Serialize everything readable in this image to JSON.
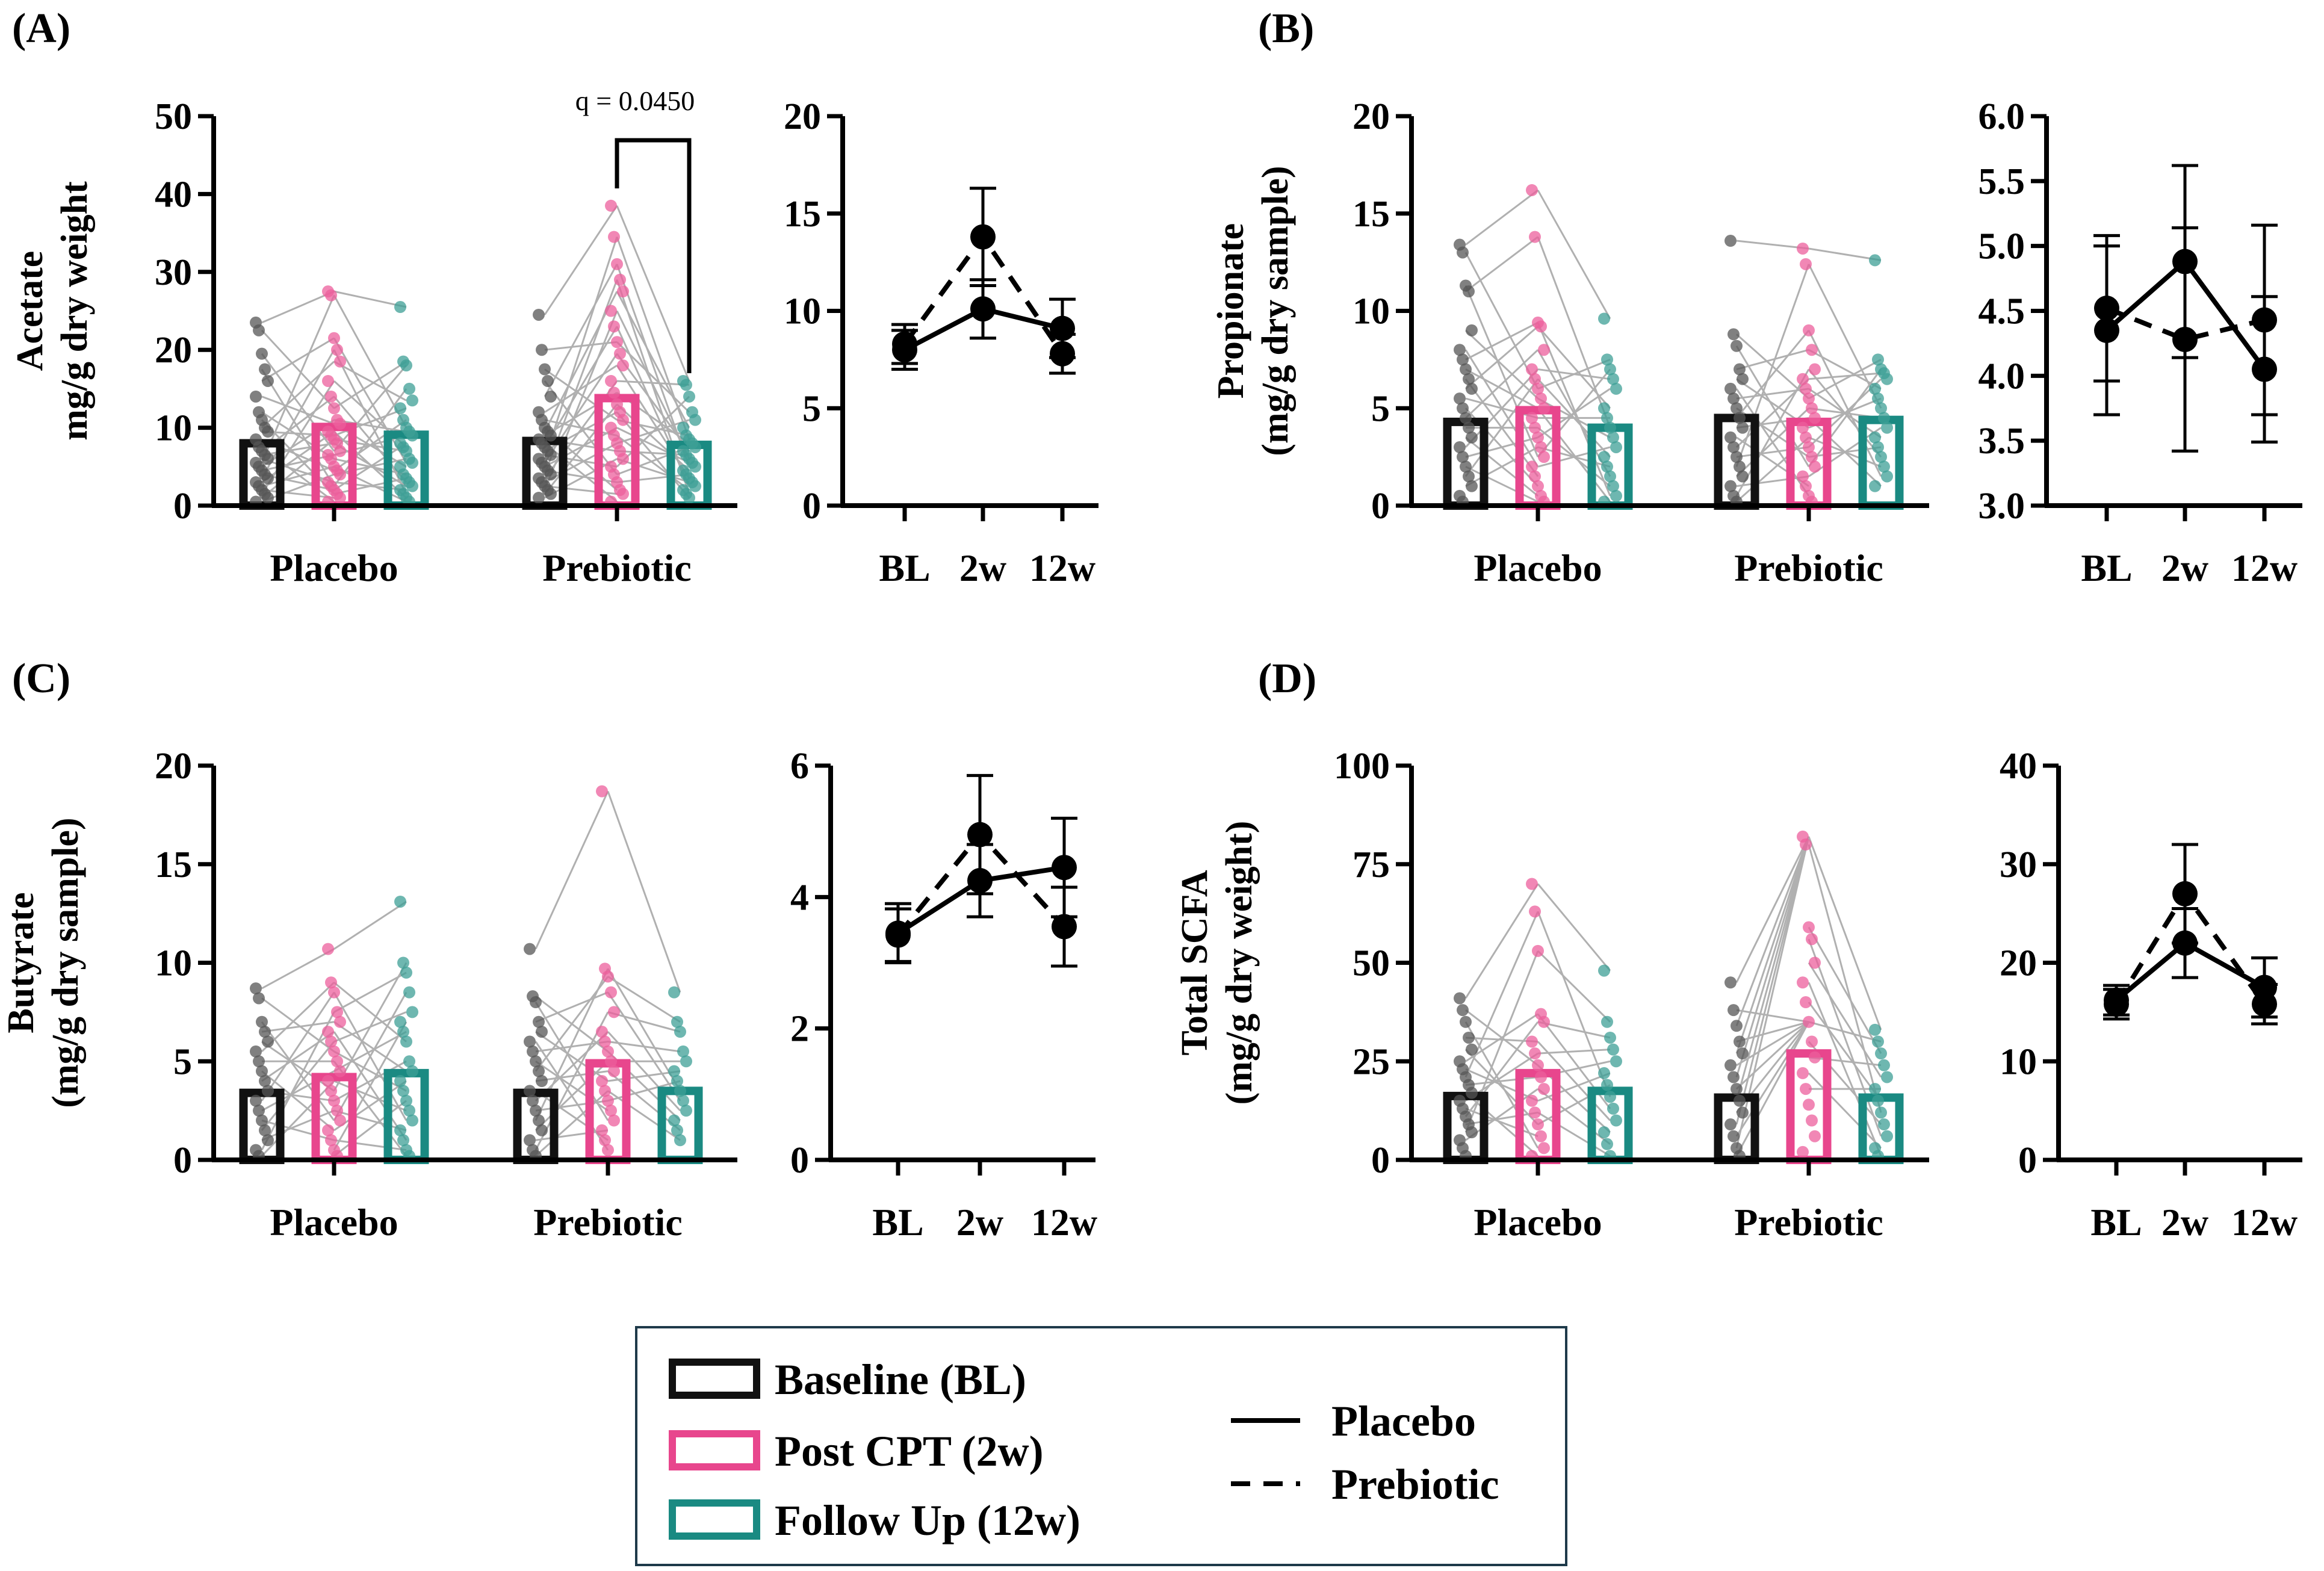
{
  "colors": {
    "baseline": "#111111",
    "post": "#e8468d",
    "follow": "#1a8a82",
    "dot_baseline": "#555555",
    "dot_post": "#ec5f9c",
    "dot_follow": "#3e9f96",
    "pair_line": "#b0b0b0",
    "legend_border": "#1e3a4a"
  },
  "time_labels": [
    "BL",
    "2w",
    "12w"
  ],
  "group_labels": [
    "Placebo",
    "Prebiotic"
  ],
  "legend": {
    "bars": [
      {
        "label": "Baseline (BL)",
        "color": "#111111"
      },
      {
        "label": "Post CPT (2w)",
        "color": "#e8468d"
      },
      {
        "label": "Follow Up (12w)",
        "color": "#1a8a82"
      }
    ],
    "lines": [
      {
        "label": "Placebo",
        "style": "solid"
      },
      {
        "label": "Prebiotic",
        "style": "dashed"
      }
    ]
  },
  "chart_data": [
    {
      "panel": "(A)",
      "type": "bar",
      "ylabel_lines": [
        "Acetate",
        "mg/g dry weight"
      ],
      "ylim": [
        0,
        50
      ],
      "yticks": [
        0,
        10,
        20,
        30,
        40,
        50
      ],
      "categories": [
        "Placebo",
        "Prebiotic"
      ],
      "series": [
        {
          "name": "Baseline (BL)",
          "values": [
            8.0,
            8.3
          ]
        },
        {
          "name": "Post CPT (2w)",
          "values": [
            10.1,
            13.8
          ]
        },
        {
          "name": "Follow Up (12w)",
          "values": [
            9.1,
            7.8
          ]
        }
      ],
      "annotation": {
        "text": "q = 0.0450",
        "group": "Prebiotic",
        "from": "Post CPT (2w)",
        "to": "Follow Up (12w)"
      },
      "points": [
        [
          [
            23.5,
            22.5,
            19.5,
            17.5,
            16,
            14,
            12,
            11,
            10,
            9.5,
            8.5,
            7.5,
            7,
            6.5,
            6,
            5.5,
            5,
            4.5,
            4,
            3.5,
            3,
            2.5,
            2,
            1.5,
            1,
            0.5
          ],
          [
            27.5,
            27,
            21.5,
            20,
            18.5,
            16,
            14,
            12.5,
            11,
            10.5,
            9.5,
            9,
            8.5,
            8,
            7,
            6.5,
            6,
            5,
            4.5,
            4,
            3,
            2.5,
            2,
            1.5,
            1,
            0.5
          ],
          [
            25.5,
            18.5,
            18,
            15,
            13.5,
            12.5,
            11,
            10,
            9.5,
            9,
            8,
            7.5,
            7,
            6,
            5.5,
            5,
            4,
            3.5,
            3,
            2.5,
            2,
            1.5,
            1,
            0.5
          ]
        ],
        [
          [
            24.5,
            20,
            17.5,
            16,
            14,
            12,
            11,
            10,
            9.5,
            9,
            8.5,
            8,
            7.5,
            7,
            6.5,
            6,
            5.5,
            5,
            4.5,
            4,
            3.5,
            3,
            2.5,
            2,
            1.5,
            1
          ],
          [
            38.5,
            34.5,
            31,
            29,
            27.5,
            25,
            23,
            21,
            19.5,
            18,
            16,
            14.5,
            13,
            12,
            11,
            10,
            9,
            8,
            7,
            6,
            5,
            4,
            3,
            2,
            1.5,
            0.5
          ],
          [
            16,
            15.5,
            14,
            12,
            11,
            10,
            9,
            8.5,
            8,
            7.5,
            7,
            6.5,
            6,
            5.5,
            5,
            4.5,
            4,
            3.5,
            3,
            2.5,
            2,
            1.5,
            1
          ]
        ]
      ]
    },
    {
      "panel": "(A)",
      "type": "line",
      "categories": [
        "BL",
        "2w",
        "12w"
      ],
      "ylim": [
        0,
        20
      ],
      "yticks": [
        0,
        5,
        10,
        15,
        20
      ],
      "series": [
        {
          "name": "Placebo",
          "values": [
            8.0,
            10.1,
            9.1
          ],
          "err": [
            1.0,
            1.5,
            1.5
          ]
        },
        {
          "name": "Prebiotic",
          "values": [
            8.3,
            13.8,
            7.8
          ],
          "err": [
            1.0,
            2.5,
            1.0
          ]
        }
      ]
    },
    {
      "panel": "(B)",
      "type": "bar",
      "ylabel_lines": [
        "Propionate",
        "(mg/g dry sample)"
      ],
      "ylim": [
        0,
        20
      ],
      "yticks": [
        0,
        5,
        10,
        15,
        20
      ],
      "categories": [
        "Placebo",
        "Prebiotic"
      ],
      "series": [
        {
          "name": "Baseline (BL)",
          "values": [
            4.3,
            4.5
          ]
        },
        {
          "name": "Post CPT (2w)",
          "values": [
            4.9,
            4.3
          ]
        },
        {
          "name": "Follow Up (12w)",
          "values": [
            4.0,
            4.4
          ]
        }
      ],
      "points": [
        [
          [
            13.4,
            13,
            11.3,
            11,
            9,
            8,
            7.5,
            7,
            6.5,
            6,
            5.5,
            5,
            4.5,
            4,
            3.5,
            3,
            2.5,
            2,
            1.5,
            1,
            0.5,
            0.2
          ],
          [
            16.2,
            13.8,
            9.4,
            9.2,
            8,
            7,
            6.5,
            6,
            5.5,
            5,
            4.5,
            4,
            3.5,
            3,
            2.5,
            2,
            1.5,
            1,
            0.5,
            0.2
          ],
          [
            9.6,
            7.5,
            7,
            6.5,
            6,
            5,
            4.5,
            4,
            3.5,
            3,
            2.5,
            2,
            1.5,
            1,
            0.5,
            0.2
          ]
        ],
        [
          [
            13.6,
            8.8,
            8.2,
            7,
            6.5,
            6,
            5.5,
            5,
            4.5,
            4,
            3.5,
            3,
            2.5,
            2,
            1.5,
            1,
            0.5,
            0.2
          ],
          [
            13.2,
            12.4,
            9,
            8,
            7,
            6.5,
            6,
            5.5,
            5,
            4.5,
            4,
            3.5,
            3,
            2.5,
            2,
            1.5,
            1,
            0.5,
            0.2
          ],
          [
            12.6,
            7.5,
            7,
            6.8,
            6.5,
            6,
            5.5,
            5,
            4.5,
            4,
            3.5,
            3,
            2.5,
            2,
            1.5,
            1
          ]
        ]
      ]
    },
    {
      "panel": "(B)",
      "type": "line",
      "categories": [
        "BL",
        "2w",
        "12w"
      ],
      "ylim": [
        3.0,
        6.0
      ],
      "yticks": [
        3.0,
        3.5,
        4.0,
        4.5,
        5.0,
        5.5,
        6.0
      ],
      "series": [
        {
          "name": "Placebo",
          "values": [
            4.35,
            4.88,
            4.05
          ],
          "err": [
            0.65,
            0.74,
            0.56
          ]
        },
        {
          "name": "Prebiotic",
          "values": [
            4.52,
            4.28,
            4.43
          ],
          "err": [
            0.56,
            0.86,
            0.73
          ]
        }
      ]
    },
    {
      "panel": "(C)",
      "type": "bar",
      "ylabel_lines": [
        "Butyrate",
        "(mg/g dry sample)"
      ],
      "ylim": [
        0,
        20
      ],
      "yticks": [
        0,
        5,
        10,
        15,
        20
      ],
      "categories": [
        "Placebo",
        "Prebiotic"
      ],
      "series": [
        {
          "name": "Baseline (BL)",
          "values": [
            3.4,
            3.4
          ]
        },
        {
          "name": "Post CPT (2w)",
          "values": [
            4.2,
            4.9
          ]
        },
        {
          "name": "Follow Up (12w)",
          "values": [
            4.4,
            3.5
          ]
        }
      ],
      "points": [
        [
          [
            8.7,
            8.2,
            7,
            6.5,
            6,
            5.5,
            5,
            4.5,
            4,
            3.5,
            3,
            2.5,
            2,
            1.5,
            1,
            0.5,
            0.2
          ],
          [
            10.7,
            9,
            8.5,
            7.5,
            7,
            6.5,
            6,
            5.5,
            5,
            4.5,
            4,
            3.5,
            3,
            2.5,
            2,
            1.5,
            1,
            0.5,
            0.2
          ],
          [
            13.1,
            10,
            9.5,
            8.5,
            7.5,
            7,
            6.5,
            6,
            5,
            4.5,
            4,
            3.5,
            3,
            2.5,
            2,
            1.5,
            1,
            0.5,
            0.2
          ]
        ],
        [
          [
            10.7,
            8.3,
            8,
            7,
            6.5,
            6,
            5.5,
            5,
            4.5,
            4,
            3.5,
            3,
            2.5,
            2,
            1.5,
            1,
            0.5,
            0.2
          ],
          [
            18.7,
            9.7,
            9.3,
            8.5,
            7.5,
            6.5,
            6,
            5.5,
            5,
            4.5,
            4,
            3.5,
            3,
            2.5,
            2,
            1.5,
            1,
            0.5
          ],
          [
            8.5,
            7,
            6.5,
            5.5,
            5,
            4.5,
            4,
            3.5,
            3,
            2.5,
            2,
            1.5,
            1
          ]
        ]
      ]
    },
    {
      "panel": "(C)",
      "type": "line",
      "categories": [
        "BL",
        "2w",
        "12w"
      ],
      "ylim": [
        0,
        6
      ],
      "yticks": [
        0,
        2,
        4,
        6
      ],
      "series": [
        {
          "name": "Placebo",
          "values": [
            3.45,
            4.25,
            4.45
          ],
          "err": [
            0.45,
            0.55,
            0.75
          ]
        },
        {
          "name": "Prebiotic",
          "values": [
            3.42,
            4.95,
            3.55
          ],
          "err": [
            0.4,
            0.9,
            0.6
          ]
        }
      ]
    },
    {
      "panel": "(D)",
      "type": "bar",
      "ylabel_lines": [
        "Total SCFA",
        "(mg/g dry weight)"
      ],
      "ylim": [
        0,
        100
      ],
      "yticks": [
        0,
        25,
        50,
        75,
        100
      ],
      "categories": [
        "Placebo",
        "Prebiotic"
      ],
      "series": [
        {
          "name": "Baseline (BL)",
          "values": [
            16.2,
            15.8
          ]
        },
        {
          "name": "Post CPT (2w)",
          "values": [
            22.0,
            27.0
          ]
        },
        {
          "name": "Follow Up (12w)",
          "values": [
            17.5,
            15.8
          ]
        }
      ],
      "points": [
        [
          [
            41,
            38,
            35,
            31,
            28,
            25,
            23,
            21,
            19,
            17,
            15,
            13,
            11,
            9,
            7,
            5,
            3,
            1
          ],
          [
            70,
            63,
            53,
            37,
            35,
            30,
            27,
            24,
            21,
            18,
            15,
            12,
            9,
            6,
            3,
            1
          ],
          [
            48,
            35,
            31,
            28,
            25,
            22,
            19,
            16,
            13,
            10,
            7,
            4,
            1
          ]
        ],
        [
          [
            45,
            38,
            34,
            30,
            27,
            24,
            21,
            18,
            15,
            12,
            9,
            6,
            3,
            1
          ],
          [
            82,
            80,
            59,
            56,
            50,
            45,
            40,
            35,
            30,
            26,
            22,
            18,
            14,
            10,
            6,
            2
          ],
          [
            33,
            30,
            27,
            24,
            21,
            18,
            15,
            12,
            9,
            6,
            3,
            1
          ]
        ]
      ]
    },
    {
      "panel": "(D)",
      "type": "line",
      "categories": [
        "BL",
        "2w",
        "12w"
      ],
      "ylim": [
        0,
        40
      ],
      "yticks": [
        0,
        10,
        20,
        30,
        40
      ],
      "series": [
        {
          "name": "Placebo",
          "values": [
            16.2,
            22.0,
            17.5
          ],
          "err": [
            1.5,
            3.5,
            3.0
          ]
        },
        {
          "name": "Prebiotic",
          "values": [
            15.8,
            27.0,
            15.8
          ],
          "err": [
            1.5,
            5.0,
            2.0
          ]
        }
      ]
    }
  ]
}
